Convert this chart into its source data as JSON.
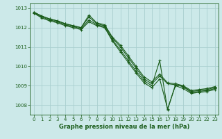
{
  "background_color": "#cce9e9",
  "grid_color": "#aacfcf",
  "line_color": "#1a5c1a",
  "xlabel": "Graphe pression niveau de la mer (hPa)",
  "ylim": [
    1007.5,
    1013.25
  ],
  "xlim": [
    -0.5,
    23.5
  ],
  "yticks": [
    1008,
    1009,
    1010,
    1011,
    1012,
    1013
  ],
  "xticks": [
    0,
    1,
    2,
    3,
    4,
    5,
    6,
    7,
    8,
    9,
    10,
    11,
    12,
    13,
    14,
    15,
    16,
    17,
    18,
    19,
    20,
    21,
    22,
    23
  ],
  "series": [
    [
      1012.8,
      1012.6,
      1012.45,
      1012.35,
      1012.2,
      1012.1,
      1012.0,
      1012.65,
      1012.25,
      1012.15,
      1011.5,
      1011.1,
      1010.55,
      1010.0,
      1009.45,
      1009.2,
      1009.6,
      1009.15,
      1009.1,
      1009.0,
      1008.75,
      1008.8,
      1008.85,
      1008.95
    ],
    [
      1012.8,
      1012.6,
      1012.45,
      1012.35,
      1012.2,
      1012.1,
      1012.0,
      1012.55,
      1012.2,
      1012.1,
      1011.45,
      1011.0,
      1010.45,
      1009.9,
      1009.35,
      1009.1,
      1009.5,
      1009.1,
      1009.05,
      1008.95,
      1008.7,
      1008.75,
      1008.8,
      1008.9
    ],
    [
      1012.75,
      1012.55,
      1012.4,
      1012.3,
      1012.15,
      1012.05,
      1011.95,
      1012.4,
      1012.15,
      1012.05,
      1011.35,
      1010.85,
      1010.3,
      1009.75,
      1009.25,
      1009.0,
      1010.3,
      1007.75,
      1009.05,
      1008.95,
      1008.65,
      1008.7,
      1008.75,
      1008.85
    ],
    [
      1012.75,
      1012.5,
      1012.35,
      1012.25,
      1012.1,
      1012.0,
      1011.9,
      1012.3,
      1012.1,
      1012.0,
      1011.3,
      1010.75,
      1010.2,
      1009.65,
      1009.15,
      1008.9,
      1009.35,
      1007.8,
      1009.0,
      1008.85,
      1008.6,
      1008.65,
      1008.7,
      1008.8
    ]
  ]
}
